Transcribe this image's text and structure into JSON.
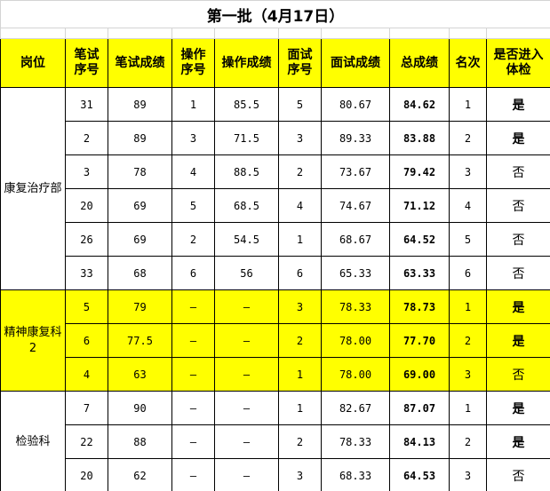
{
  "title": "第一批（4月17日）",
  "headers": [
    "岗位",
    "笔试序号",
    "笔试成绩",
    "操作序号",
    "操作成绩",
    "面试序号",
    "面试成绩",
    "总成绩",
    "名次",
    "是否进入体检"
  ],
  "highlight_color": "#ffff00",
  "groups": [
    {
      "position": "康复治疗部",
      "highlight": false,
      "rows": [
        [
          "31",
          "89",
          "1",
          "85.5",
          "5",
          "80.67",
          "84.62",
          "1",
          "是"
        ],
        [
          "2",
          "89",
          "3",
          "71.5",
          "3",
          "89.33",
          "83.88",
          "2",
          "是"
        ],
        [
          "3",
          "78",
          "4",
          "88.5",
          "2",
          "73.67",
          "79.42",
          "3",
          "否"
        ],
        [
          "20",
          "69",
          "5",
          "68.5",
          "4",
          "74.67",
          "71.12",
          "4",
          "否"
        ],
        [
          "26",
          "69",
          "2",
          "54.5",
          "1",
          "68.67",
          "64.52",
          "5",
          "否"
        ],
        [
          "33",
          "68",
          "6",
          "56",
          "6",
          "65.33",
          "63.33",
          "6",
          "否"
        ]
      ]
    },
    {
      "position": "精神康复科2",
      "highlight": true,
      "rows": [
        [
          "5",
          "79",
          "—",
          "—",
          "3",
          "78.33",
          "78.73",
          "1",
          "是"
        ],
        [
          "6",
          "77.5",
          "—",
          "—",
          "2",
          "78.00",
          "77.70",
          "2",
          "是"
        ],
        [
          "4",
          "63",
          "—",
          "—",
          "1",
          "78.00",
          "69.00",
          "3",
          "否"
        ]
      ]
    },
    {
      "position": "检验科",
      "highlight": false,
      "rows": [
        [
          "7",
          "90",
          "—",
          "—",
          "1",
          "82.67",
          "87.07",
          "1",
          "是"
        ],
        [
          "22",
          "88",
          "—",
          "—",
          "2",
          "78.33",
          "84.13",
          "2",
          "是"
        ],
        [
          "20",
          "62",
          "—",
          "—",
          "3",
          "68.33",
          "64.53",
          "3",
          "否"
        ]
      ]
    }
  ]
}
